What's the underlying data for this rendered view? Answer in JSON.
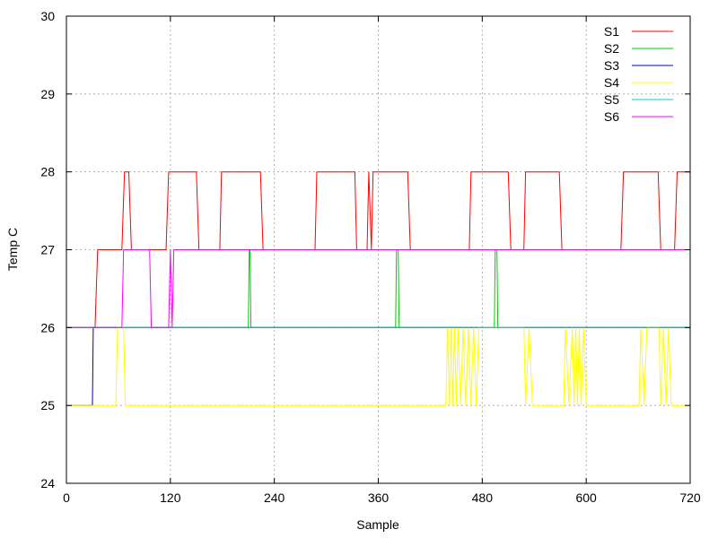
{
  "chart_data": {
    "type": "line",
    "xlabel": "Sample",
    "ylabel": "Temp C",
    "xlim": [
      0,
      720
    ],
    "ylim": [
      24,
      30
    ],
    "xticks": [
      0,
      120,
      240,
      360,
      480,
      600,
      720
    ],
    "yticks": [
      24,
      25,
      26,
      27,
      28,
      29,
      30
    ],
    "grid": true,
    "legend_position": "top-right",
    "series": [
      {
        "name": "S1",
        "color": "#ff0000",
        "points": [
          [
            0,
            26
          ],
          [
            33,
            26
          ],
          [
            36,
            27
          ],
          [
            64,
            27
          ],
          [
            67,
            28
          ],
          [
            72,
            28
          ],
          [
            75,
            27
          ],
          [
            115,
            27
          ],
          [
            118,
            28
          ],
          [
            150,
            28
          ],
          [
            153,
            27
          ],
          [
            177,
            27
          ],
          [
            179,
            28
          ],
          [
            224,
            28
          ],
          [
            227,
            27
          ],
          [
            287,
            27
          ],
          [
            289,
            28
          ],
          [
            333,
            28
          ],
          [
            335,
            27
          ],
          [
            347,
            27
          ],
          [
            349,
            28
          ],
          [
            352,
            27
          ],
          [
            354,
            28
          ],
          [
            394,
            28
          ],
          [
            397,
            27
          ],
          [
            465,
            27
          ],
          [
            467,
            28
          ],
          [
            510,
            28
          ],
          [
            513,
            27
          ],
          [
            528,
            27
          ],
          [
            530,
            28
          ],
          [
            569,
            28
          ],
          [
            572,
            27
          ],
          [
            640,
            27
          ],
          [
            643,
            28
          ],
          [
            683,
            28
          ],
          [
            686,
            27
          ],
          [
            702,
            27
          ],
          [
            705,
            28
          ],
          [
            720,
            28
          ]
        ]
      },
      {
        "name": "S2",
        "color": "#00cc00",
        "points": [
          [
            0,
            26
          ],
          [
            210,
            26
          ],
          [
            211,
            27
          ],
          [
            212,
            27
          ],
          [
            213,
            26
          ],
          [
            380,
            26
          ],
          [
            381,
            27
          ],
          [
            383,
            27
          ],
          [
            384,
            26
          ],
          [
            494,
            26
          ],
          [
            495,
            27
          ],
          [
            497,
            27
          ],
          [
            498,
            26
          ],
          [
            720,
            26
          ]
        ]
      },
      {
        "name": "S3",
        "color": "#0000cc",
        "points": [
          [
            0,
            25
          ],
          [
            30,
            25
          ],
          [
            31,
            26
          ],
          [
            720,
            26
          ]
        ]
      },
      {
        "name": "S4",
        "color": "#ffff00",
        "points": [
          [
            0,
            25
          ],
          [
            57,
            25
          ],
          [
            59,
            26
          ],
          [
            66,
            26
          ],
          [
            68,
            25
          ],
          [
            438,
            25
          ],
          [
            440,
            26
          ],
          [
            442,
            25
          ],
          [
            444,
            26
          ],
          [
            446,
            25
          ],
          [
            448,
            26
          ],
          [
            450,
            25
          ],
          [
            452,
            26
          ],
          [
            455,
            25
          ],
          [
            458,
            26
          ],
          [
            461,
            25
          ],
          [
            464,
            26
          ],
          [
            467,
            25
          ],
          [
            470,
            26
          ],
          [
            473,
            25
          ],
          [
            476,
            26
          ],
          [
            528,
            26
          ],
          [
            530,
            25
          ],
          [
            534,
            26
          ],
          [
            538,
            25
          ],
          [
            574,
            25
          ],
          [
            576,
            26
          ],
          [
            580,
            25
          ],
          [
            584,
            26
          ],
          [
            586,
            25
          ],
          [
            588,
            26
          ],
          [
            590,
            25
          ],
          [
            592,
            26
          ],
          [
            594,
            25
          ],
          [
            597,
            26
          ],
          [
            600,
            25
          ],
          [
            661,
            25
          ],
          [
            663,
            26
          ],
          [
            667,
            25
          ],
          [
            670,
            26
          ],
          [
            684,
            26
          ],
          [
            686,
            25
          ],
          [
            689,
            26
          ],
          [
            692,
            25
          ],
          [
            695,
            26
          ],
          [
            698,
            25
          ],
          [
            720,
            25
          ]
        ]
      },
      {
        "name": "S5",
        "color": "#00cccc",
        "points": [
          [
            0,
            26
          ],
          [
            720,
            26
          ]
        ]
      },
      {
        "name": "S6",
        "color": "#ff00ff",
        "points": [
          [
            0,
            26
          ],
          [
            64,
            26
          ],
          [
            66,
            27
          ],
          [
            96,
            27
          ],
          [
            98,
            26
          ],
          [
            118,
            26
          ],
          [
            120,
            27
          ],
          [
            122,
            26
          ],
          [
            124,
            27
          ],
          [
            720,
            27
          ]
        ]
      }
    ]
  }
}
